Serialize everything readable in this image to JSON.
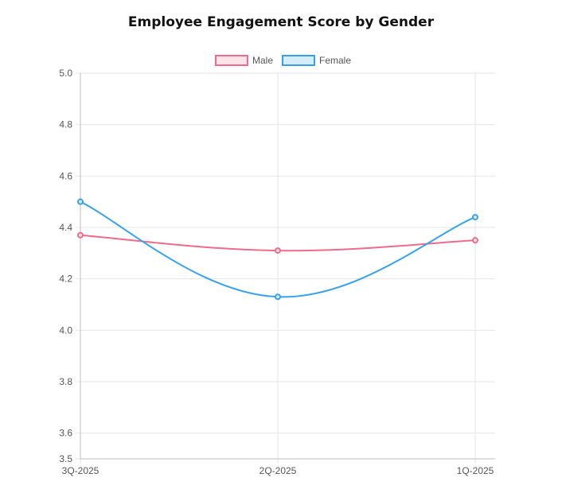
{
  "chart_data": {
    "type": "line",
    "title": "Employee Engagement Score by Gender",
    "categories": [
      "3Q-2025",
      "2Q-2025",
      "1Q-2025"
    ],
    "series": [
      {
        "name": "Male",
        "values": [
          4.37,
          4.31,
          4.35
        ],
        "color": "#f06b8a",
        "fill": "#fde3ea"
      },
      {
        "name": "Female",
        "values": [
          4.5,
          4.13,
          4.44
        ],
        "color": "#36a2eb",
        "fill": "#d7ecfb"
      }
    ],
    "ylim": [
      3.5,
      5.0
    ],
    "yticks": [
      "3.5",
      "3.6",
      "3.8",
      "4.0",
      "4.2",
      "4.4",
      "4.6",
      "4.8",
      "5.0"
    ],
    "grid": true,
    "legend": "top-center",
    "xlabel": "",
    "ylabel": ""
  }
}
